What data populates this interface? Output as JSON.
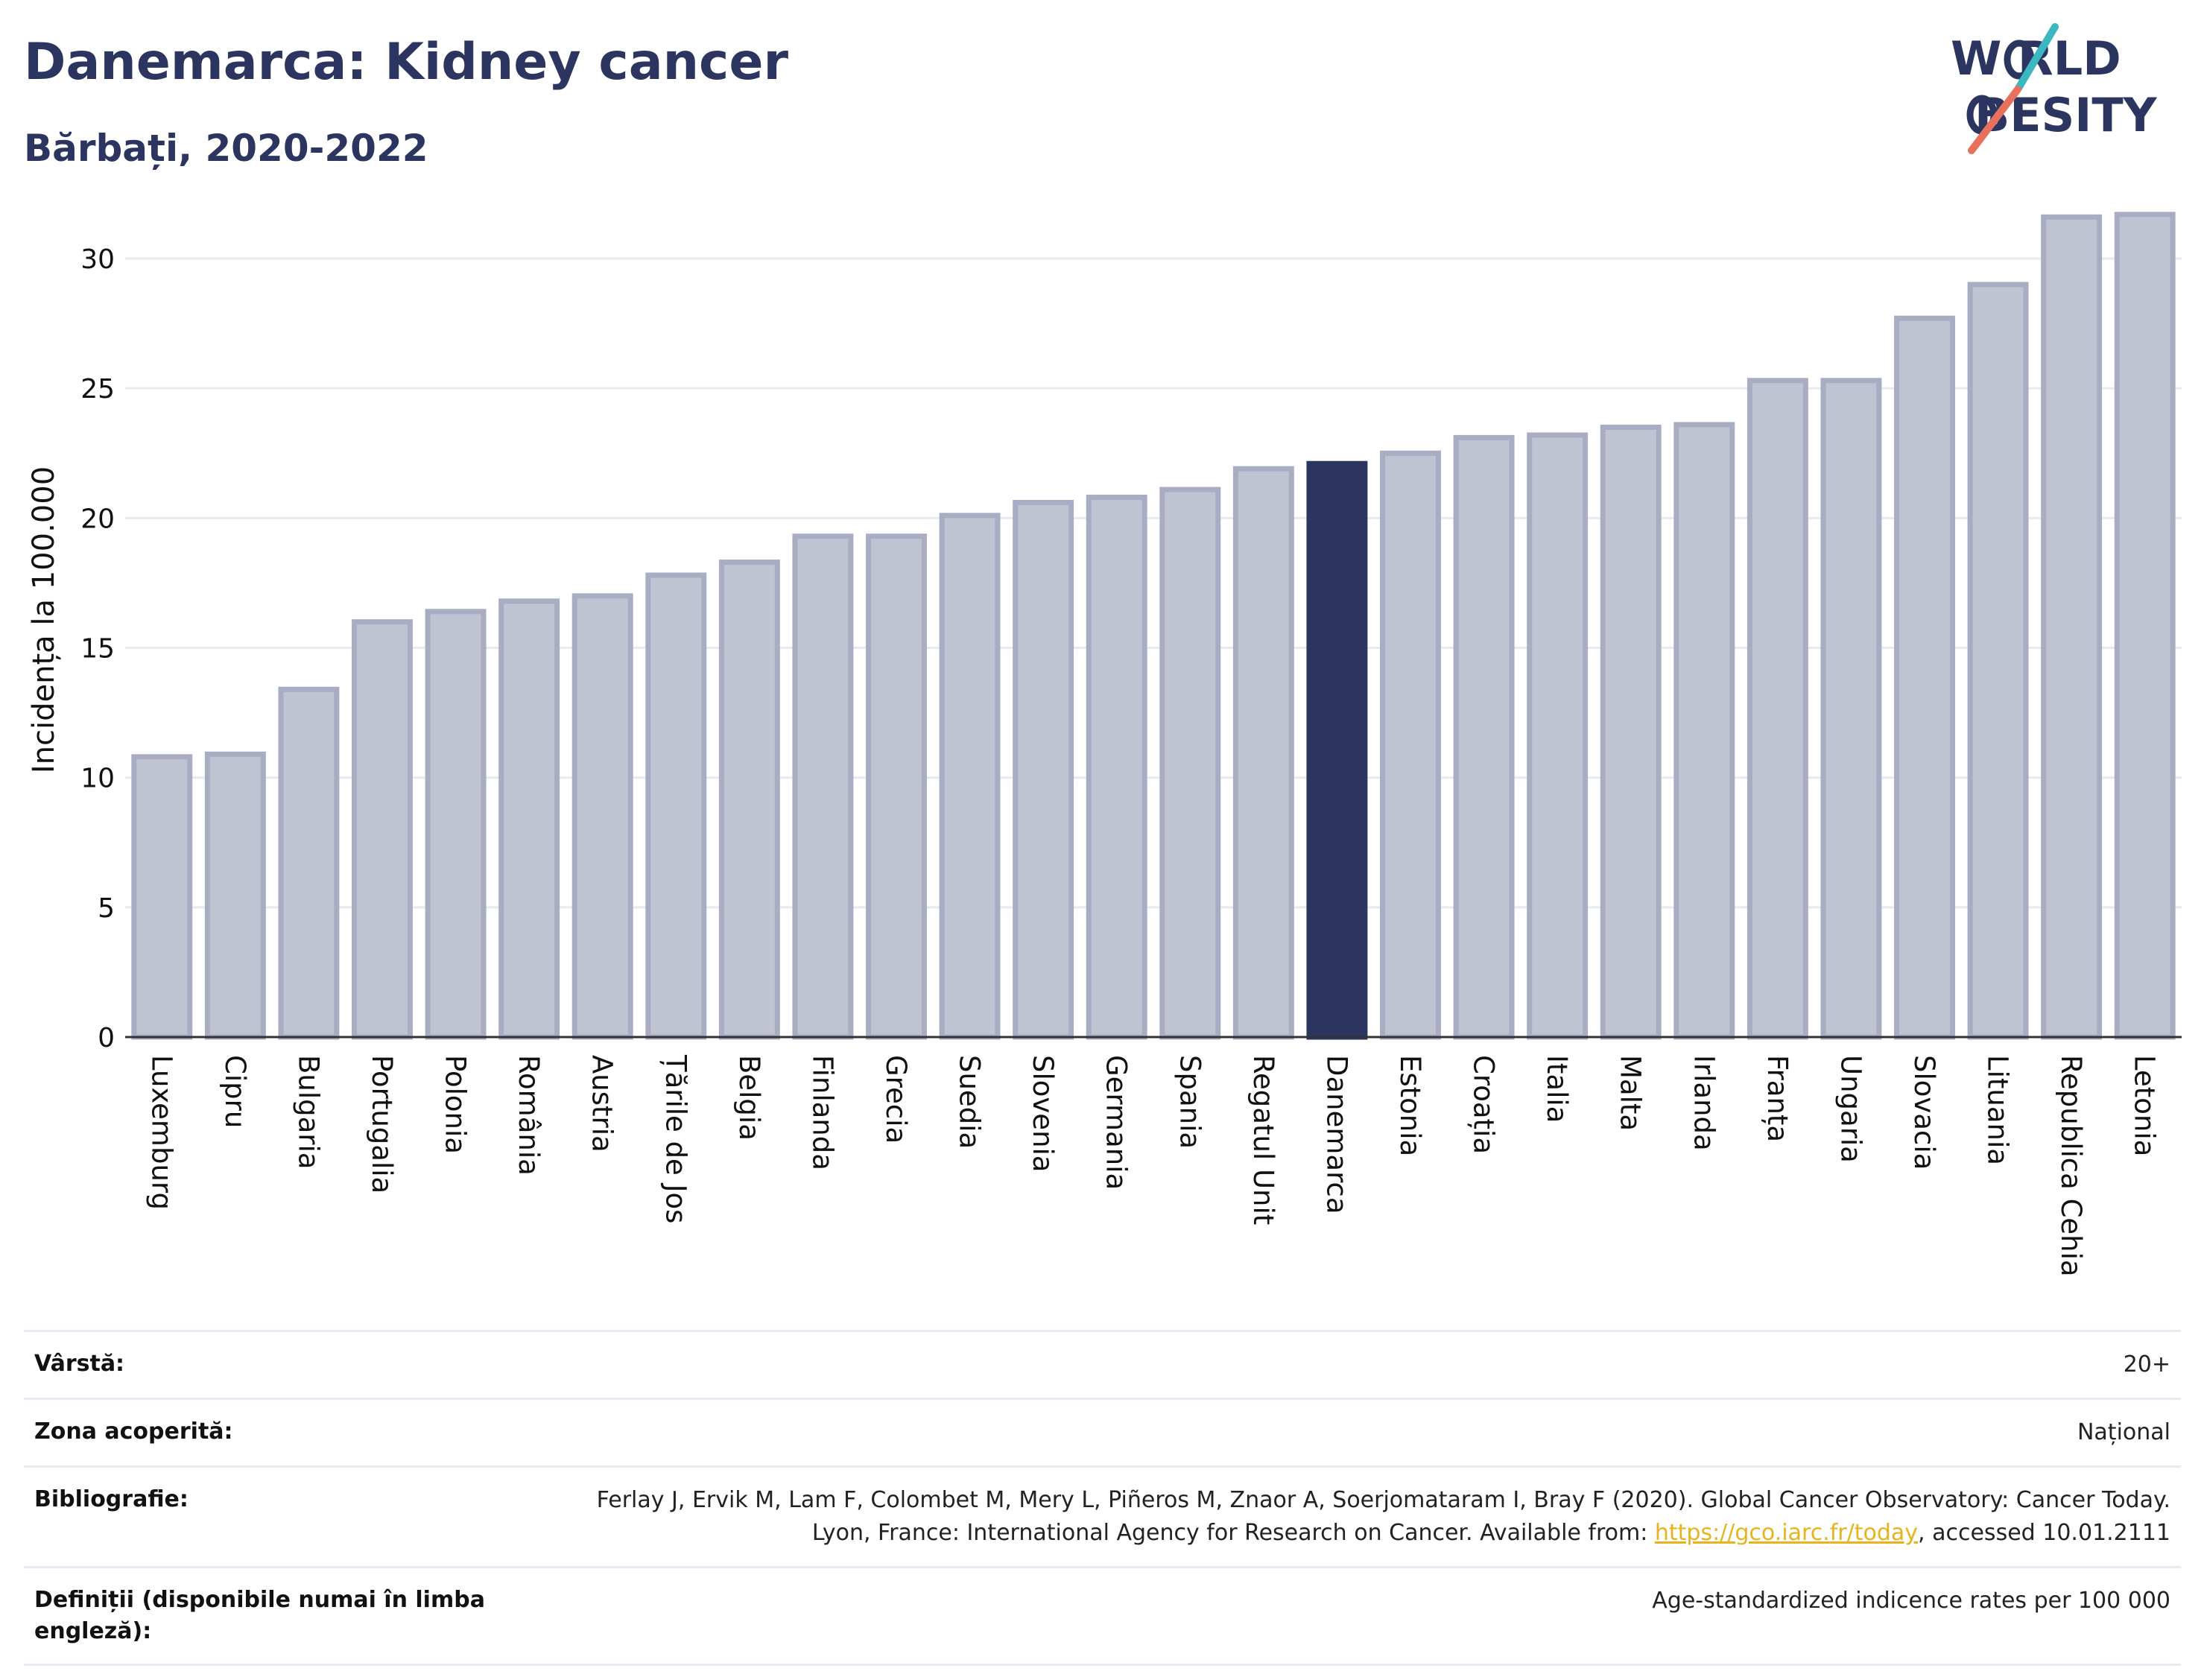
{
  "header": {
    "title": "Danemarca: Kidney cancer",
    "subtitle": "Bărbați, 2020-2022"
  },
  "logo": {
    "line1": "W  RLD",
    "line2": "BESITY",
    "text": "WORLD OBESITY",
    "colors": {
      "text": "#2b3560",
      "slash_teal": "#3ab7c0",
      "slash_red": "#e8715e"
    }
  },
  "chart_data": {
    "type": "bar",
    "title": "",
    "xlabel": "",
    "ylabel": "Incidența la 100.000",
    "ylim": [
      0,
      32.5
    ],
    "yticks": [
      0,
      5,
      10,
      15,
      20,
      25,
      30
    ],
    "grid": true,
    "highlight": "Danemarca",
    "colors": {
      "bar": "#c0c3d1",
      "bar_edge": "#a8adc3",
      "highlight": "#2b3560",
      "grid": "#e8eaf0"
    },
    "categories": [
      "Luxemburg",
      "Cipru",
      "Bulgaria",
      "Portugalia",
      "Polonia",
      "România",
      "Austria",
      "Țările de Jos",
      "Belgia",
      "Finlanda",
      "Grecia",
      "Suedia",
      "Slovenia",
      "Germania",
      "Spania",
      "Regatul Unit",
      "Danemarca",
      "Estonia",
      "Croația",
      "Italia",
      "Malta",
      "Irlanda",
      "Franța",
      "Ungaria",
      "Slovacia",
      "Lituania",
      "Republica Cehia",
      "Letonia"
    ],
    "values": [
      10.8,
      10.9,
      13.4,
      16.0,
      16.4,
      16.8,
      17.0,
      17.8,
      18.3,
      19.3,
      19.3,
      20.1,
      20.6,
      20.8,
      21.1,
      21.9,
      22.1,
      22.5,
      23.1,
      23.2,
      23.5,
      23.6,
      25.3,
      25.3,
      27.7,
      29.0,
      31.6,
      31.7
    ]
  },
  "meta": {
    "age_label": "Vârstă:",
    "age_value": "20+",
    "area_label": "Zona acoperită:",
    "area_value": "Național",
    "biblio_label": "Bibliografie:",
    "biblio_text_1": "Ferlay J, Ervik M, Lam F, Colombet M, Mery L, Piñeros M, Znaor A, Soerjomataram I, Bray F (2020). Global Cancer Observatory: Cancer Today. Lyon, France: International Agency for Research on Cancer. Available from: ",
    "biblio_link": "https://gco.iarc.fr/today",
    "biblio_text_2": ", accessed 10.01.2111",
    "def_label": "Definiții (disponibile numai în limba engleză):",
    "def_value": "Age-standardized indicence rates per 100 000"
  }
}
